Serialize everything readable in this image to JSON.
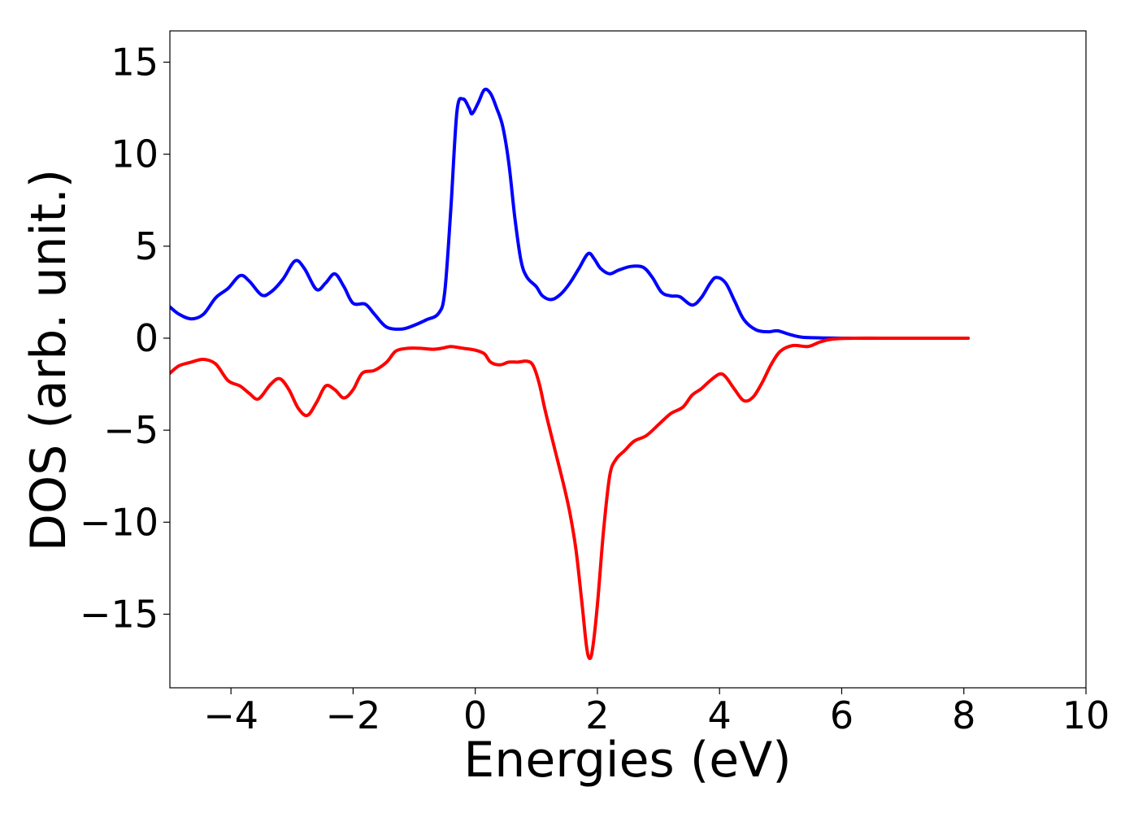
{
  "chart_data": {
    "type": "line",
    "title": "",
    "xlabel": "Energies (eV)",
    "ylabel": "DOS (arb. unit.)",
    "xlim": [
      -5,
      10
    ],
    "ylim": [
      -19,
      16.7
    ],
    "xticks": [
      -4,
      -2,
      0,
      2,
      4,
      6,
      8,
      10
    ],
    "yticks": [
      -15,
      -10,
      -5,
      0,
      5,
      10,
      15
    ],
    "xtick_labels": [
      "−4",
      "−2",
      "0",
      "2",
      "4",
      "6",
      "8",
      "10"
    ],
    "ytick_labels": [
      "−15",
      "−10",
      "−5",
      "0",
      "5",
      "10",
      "15"
    ],
    "grid": false,
    "series": [
      {
        "color": "#0000ff",
        "points": [
          [
            -5,
            1.7
          ],
          [
            -4.85,
            1.3
          ],
          [
            -4.65,
            1.05
          ],
          [
            -4.45,
            1.3
          ],
          [
            -4.25,
            2.2
          ],
          [
            -4.05,
            2.7
          ],
          [
            -3.85,
            3.4
          ],
          [
            -3.7,
            3.1
          ],
          [
            -3.5,
            2.35
          ],
          [
            -3.35,
            2.5
          ],
          [
            -3.15,
            3.2
          ],
          [
            -2.95,
            4.2
          ],
          [
            -2.8,
            3.8
          ],
          [
            -2.6,
            2.65
          ],
          [
            -2.45,
            3.0
          ],
          [
            -2.3,
            3.5
          ],
          [
            -2.15,
            2.8
          ],
          [
            -2.0,
            1.9
          ],
          [
            -1.8,
            1.85
          ],
          [
            -1.65,
            1.3
          ],
          [
            -1.45,
            0.6
          ],
          [
            -1.2,
            0.5
          ],
          [
            -1.0,
            0.7
          ],
          [
            -0.8,
            1.0
          ],
          [
            -0.6,
            1.35
          ],
          [
            -0.5,
            2.5
          ],
          [
            -0.4,
            7.0
          ],
          [
            -0.3,
            12.3
          ],
          [
            -0.2,
            13.0
          ],
          [
            -0.1,
            12.5
          ],
          [
            -0.05,
            12.2
          ],
          [
            0.05,
            12.8
          ],
          [
            0.15,
            13.5
          ],
          [
            0.25,
            13.3
          ],
          [
            0.35,
            12.5
          ],
          [
            0.45,
            11.5
          ],
          [
            0.55,
            9.5
          ],
          [
            0.65,
            6.5
          ],
          [
            0.75,
            4.2
          ],
          [
            0.85,
            3.3
          ],
          [
            1.0,
            2.8
          ],
          [
            1.1,
            2.3
          ],
          [
            1.25,
            2.1
          ],
          [
            1.4,
            2.4
          ],
          [
            1.55,
            3.0
          ],
          [
            1.7,
            3.8
          ],
          [
            1.85,
            4.6
          ],
          [
            1.95,
            4.3
          ],
          [
            2.05,
            3.8
          ],
          [
            2.2,
            3.5
          ],
          [
            2.35,
            3.7
          ],
          [
            2.55,
            3.9
          ],
          [
            2.75,
            3.85
          ],
          [
            2.9,
            3.3
          ],
          [
            3.05,
            2.5
          ],
          [
            3.2,
            2.3
          ],
          [
            3.35,
            2.25
          ],
          [
            3.55,
            1.8
          ],
          [
            3.7,
            2.2
          ],
          [
            3.85,
            3.0
          ],
          [
            3.95,
            3.3
          ],
          [
            4.1,
            3.0
          ],
          [
            4.25,
            2.0
          ],
          [
            4.4,
            1.0
          ],
          [
            4.6,
            0.45
          ],
          [
            4.8,
            0.35
          ],
          [
            4.95,
            0.4
          ],
          [
            5.15,
            0.2
          ],
          [
            5.35,
            0.05
          ],
          [
            5.6,
            0.02
          ],
          [
            6.0,
            0.0
          ],
          [
            7.0,
            0.0
          ],
          [
            8.07,
            0.0
          ]
        ]
      },
      {
        "color": "#ff0000",
        "points": [
          [
            -5,
            -1.9
          ],
          [
            -4.85,
            -1.5
          ],
          [
            -4.65,
            -1.3
          ],
          [
            -4.45,
            -1.15
          ],
          [
            -4.25,
            -1.4
          ],
          [
            -4.05,
            -2.3
          ],
          [
            -3.85,
            -2.6
          ],
          [
            -3.7,
            -3.0
          ],
          [
            -3.55,
            -3.3
          ],
          [
            -3.35,
            -2.5
          ],
          [
            -3.2,
            -2.2
          ],
          [
            -3.05,
            -2.8
          ],
          [
            -2.9,
            -3.8
          ],
          [
            -2.75,
            -4.2
          ],
          [
            -2.6,
            -3.5
          ],
          [
            -2.45,
            -2.6
          ],
          [
            -2.3,
            -2.8
          ],
          [
            -2.15,
            -3.25
          ],
          [
            -2.0,
            -2.8
          ],
          [
            -1.85,
            -1.9
          ],
          [
            -1.65,
            -1.75
          ],
          [
            -1.45,
            -1.3
          ],
          [
            -1.3,
            -0.7
          ],
          [
            -1.1,
            -0.55
          ],
          [
            -0.9,
            -0.55
          ],
          [
            -0.7,
            -0.6
          ],
          [
            -0.55,
            -0.55
          ],
          [
            -0.4,
            -0.45
          ],
          [
            -0.2,
            -0.55
          ],
          [
            0.0,
            -0.65
          ],
          [
            0.15,
            -0.85
          ],
          [
            0.25,
            -1.3
          ],
          [
            0.4,
            -1.45
          ],
          [
            0.55,
            -1.3
          ],
          [
            0.7,
            -1.3
          ],
          [
            0.85,
            -1.25
          ],
          [
            0.95,
            -1.5
          ],
          [
            1.05,
            -2.5
          ],
          [
            1.15,
            -4.0
          ],
          [
            1.3,
            -6.0
          ],
          [
            1.45,
            -8.0
          ],
          [
            1.55,
            -9.5
          ],
          [
            1.65,
            -11.5
          ],
          [
            1.75,
            -14.5
          ],
          [
            1.82,
            -16.7
          ],
          [
            1.87,
            -17.4
          ],
          [
            1.92,
            -16.9
          ],
          [
            2.0,
            -14.5
          ],
          [
            2.1,
            -10.5
          ],
          [
            2.2,
            -7.5
          ],
          [
            2.3,
            -6.6
          ],
          [
            2.45,
            -6.1
          ],
          [
            2.6,
            -5.6
          ],
          [
            2.8,
            -5.3
          ],
          [
            3.0,
            -4.7
          ],
          [
            3.2,
            -4.1
          ],
          [
            3.4,
            -3.75
          ],
          [
            3.55,
            -3.1
          ],
          [
            3.7,
            -2.75
          ],
          [
            3.85,
            -2.3
          ],
          [
            4.0,
            -1.95
          ],
          [
            4.1,
            -2.1
          ],
          [
            4.25,
            -2.8
          ],
          [
            4.4,
            -3.4
          ],
          [
            4.55,
            -3.2
          ],
          [
            4.7,
            -2.4
          ],
          [
            4.85,
            -1.4
          ],
          [
            5.0,
            -0.7
          ],
          [
            5.2,
            -0.4
          ],
          [
            5.45,
            -0.45
          ],
          [
            5.65,
            -0.2
          ],
          [
            5.85,
            -0.05
          ],
          [
            6.2,
            0.0
          ],
          [
            7.0,
            0.0
          ],
          [
            8.07,
            0.0
          ]
        ]
      }
    ]
  }
}
